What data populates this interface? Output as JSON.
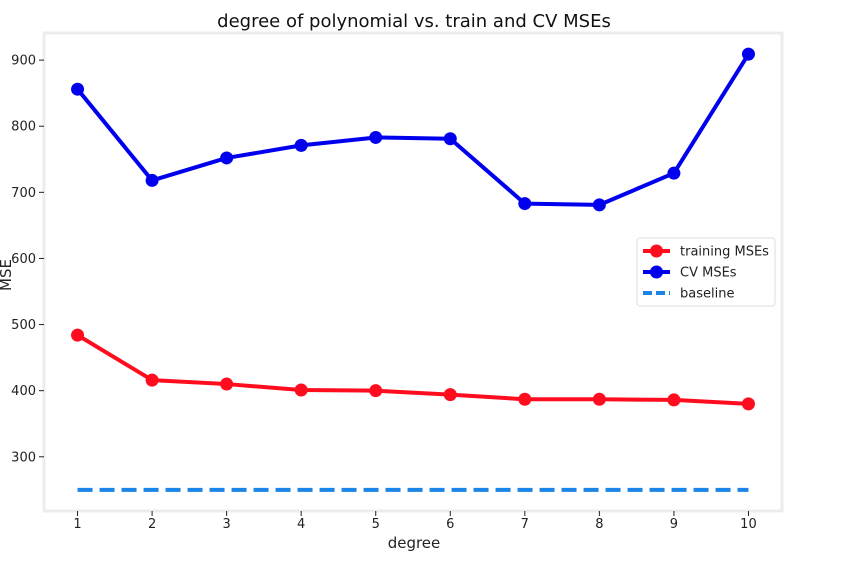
{
  "chart_data": {
    "type": "line",
    "title": "degree of polynomial vs. train and CV MSEs",
    "xlabel": "degree",
    "ylabel": "MSE",
    "x": [
      1,
      2,
      3,
      4,
      5,
      6,
      7,
      8,
      9,
      10
    ],
    "xlim": [
      0.55,
      10.45
    ],
    "ylim": [
      218,
      941
    ],
    "yticks": [
      300,
      400,
      500,
      600,
      700,
      800,
      900
    ],
    "grid": false,
    "legend_position": "right",
    "series": [
      {
        "name": "training MSEs",
        "color": "#ff0d1e",
        "style": "solid-markers",
        "values": [
          484,
          416,
          410,
          401,
          400,
          394,
          387,
          387,
          386,
          380
        ]
      },
      {
        "name": "CV MSEs",
        "color": "#0000ee",
        "style": "solid-markers",
        "values": [
          856,
          718,
          752,
          771,
          783,
          781,
          683,
          681,
          729,
          909
        ]
      },
      {
        "name": "baseline",
        "color": "#1a84e8",
        "style": "dashed",
        "values": [
          250,
          250,
          250,
          250,
          250,
          250,
          250,
          250,
          250,
          250
        ]
      }
    ]
  }
}
